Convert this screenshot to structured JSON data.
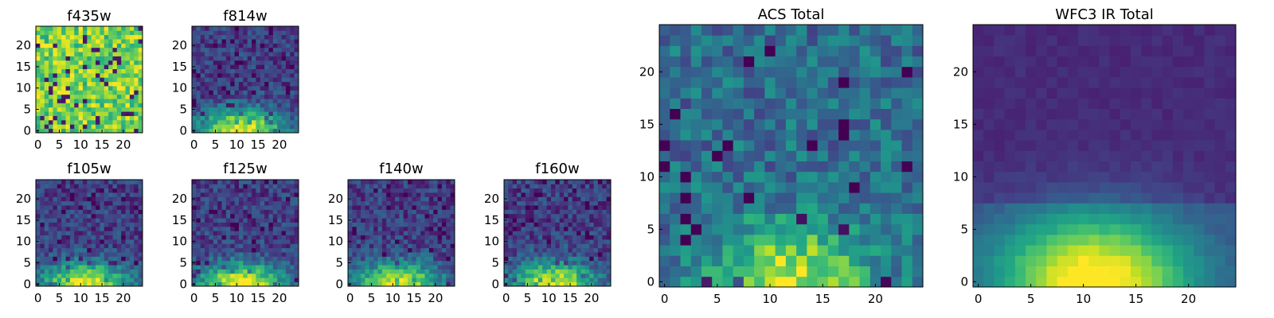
{
  "figure": {
    "panels": [
      {
        "title": "f435w",
        "pattern": "noise",
        "seed": 11
      },
      {
        "title": "f814w",
        "pattern": "gradient",
        "seed": 23
      },
      {
        "title": "f105w",
        "pattern": "gradient",
        "seed": 37
      },
      {
        "title": "f125w",
        "pattern": "gradient",
        "seed": 41
      },
      {
        "title": "f140w",
        "pattern": "gradient",
        "seed": 53
      },
      {
        "title": "f160w",
        "pattern": "gradient",
        "seed": 67
      },
      {
        "title": "ACS Total",
        "pattern": "acs",
        "seed": 79
      },
      {
        "title": "WFC3 IR Total",
        "pattern": "smooth",
        "seed": 97
      }
    ]
  },
  "chart_data": [
    {
      "type": "heatmap",
      "title": "f435w",
      "grid_size": 25,
      "xticks": [
        0,
        5,
        10,
        15,
        20
      ],
      "yticks": [
        0,
        5,
        10,
        15,
        20
      ],
      "xlim": [
        -0.5,
        24.5
      ],
      "ylim": [
        -0.5,
        24.5
      ],
      "colormap": "viridis"
    },
    {
      "type": "heatmap",
      "title": "f814w",
      "grid_size": 25,
      "xticks": [
        0,
        5,
        10,
        15,
        20
      ],
      "yticks": [
        0,
        5,
        10,
        15,
        20
      ],
      "xlim": [
        -0.5,
        24.5
      ],
      "ylim": [
        -0.5,
        24.5
      ],
      "colormap": "viridis"
    },
    {
      "type": "heatmap",
      "title": "f105w",
      "grid_size": 25,
      "xticks": [
        0,
        5,
        10,
        15,
        20
      ],
      "yticks": [
        0,
        5,
        10,
        15,
        20
      ],
      "xlim": [
        -0.5,
        24.5
      ],
      "ylim": [
        -0.5,
        24.5
      ],
      "colormap": "viridis"
    },
    {
      "type": "heatmap",
      "title": "f125w",
      "grid_size": 25,
      "xticks": [
        0,
        5,
        10,
        15,
        20
      ],
      "yticks": [
        0,
        5,
        10,
        15,
        20
      ],
      "xlim": [
        -0.5,
        24.5
      ],
      "ylim": [
        -0.5,
        24.5
      ],
      "colormap": "viridis"
    },
    {
      "type": "heatmap",
      "title": "f140w",
      "grid_size": 25,
      "xticks": [
        0,
        5,
        10,
        15,
        20
      ],
      "yticks": [
        0,
        5,
        10,
        15,
        20
      ],
      "xlim": [
        -0.5,
        24.5
      ],
      "ylim": [
        -0.5,
        24.5
      ],
      "colormap": "viridis"
    },
    {
      "type": "heatmap",
      "title": "f160w",
      "grid_size": 25,
      "xticks": [
        0,
        5,
        10,
        15,
        20
      ],
      "yticks": [
        0,
        5,
        10,
        15,
        20
      ],
      "xlim": [
        -0.5,
        24.5
      ],
      "ylim": [
        -0.5,
        24.5
      ],
      "colormap": "viridis"
    },
    {
      "type": "heatmap",
      "title": "ACS Total",
      "grid_size": 25,
      "xticks": [
        0,
        5,
        10,
        15,
        20
      ],
      "yticks": [
        0,
        5,
        10,
        15,
        20
      ],
      "xlim": [
        -0.5,
        24.5
      ],
      "ylim": [
        -0.5,
        24.5
      ],
      "colormap": "viridis"
    },
    {
      "type": "heatmap",
      "title": "WFC3 IR Total",
      "grid_size": 25,
      "xticks": [
        0,
        5,
        10,
        15,
        20
      ],
      "yticks": [
        0,
        5,
        10,
        15,
        20
      ],
      "xlim": [
        -0.5,
        24.5
      ],
      "ylim": [
        -0.5,
        24.5
      ],
      "colormap": "viridis"
    }
  ]
}
